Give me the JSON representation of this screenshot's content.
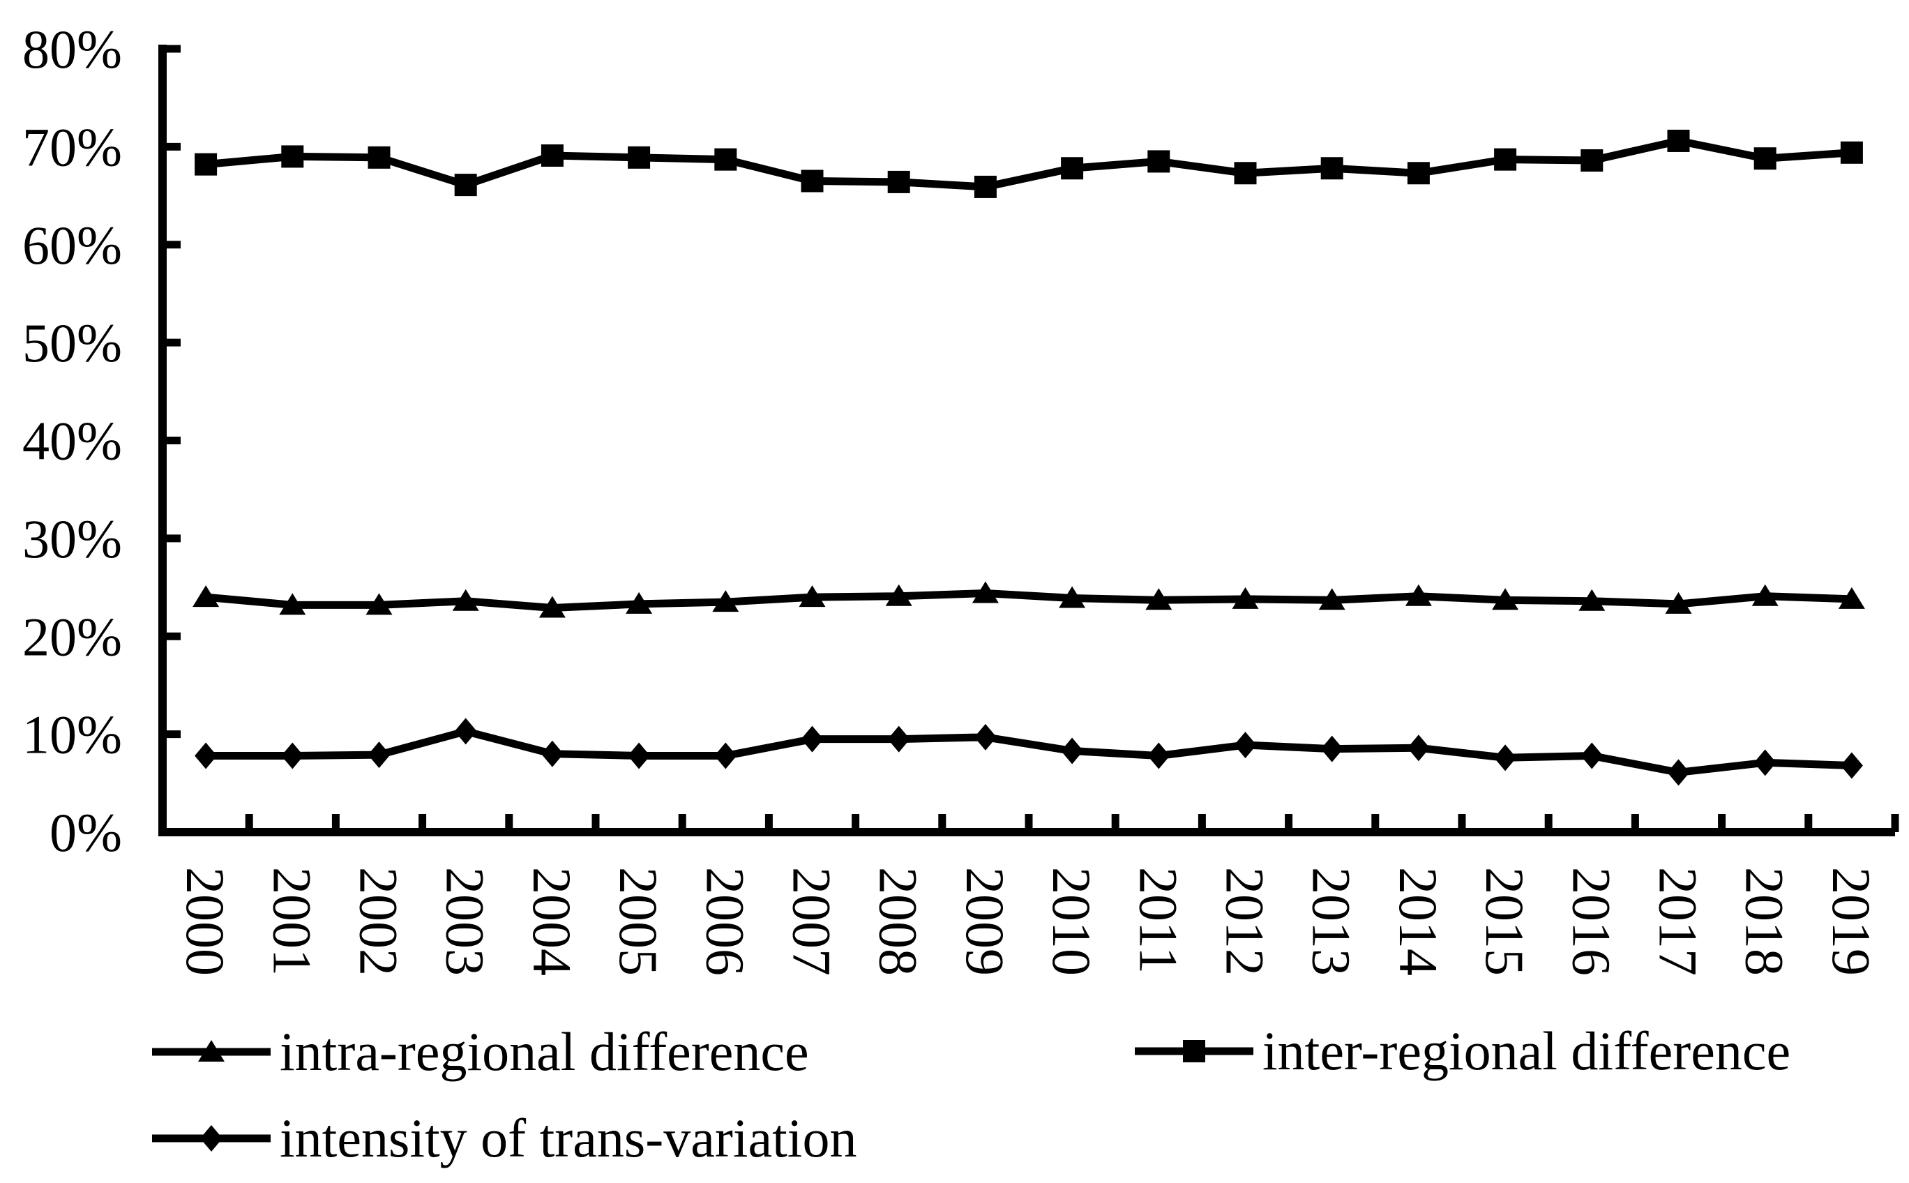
{
  "chart_data": {
    "type": "line",
    "title": "",
    "xlabel": "",
    "ylabel": "",
    "categories": [
      "2000",
      "2001",
      "2002",
      "2003",
      "2004",
      "2005",
      "2006",
      "2007",
      "2008",
      "2009",
      "2010",
      "2011",
      "2012",
      "2013",
      "2014",
      "2015",
      "2016",
      "2017",
      "2018",
      "2019"
    ],
    "series": [
      {
        "name": "intra-regional difference",
        "marker": "triangle",
        "values": [
          24.0,
          23.2,
          23.2,
          23.6,
          22.9,
          23.3,
          23.5,
          24.0,
          24.1,
          24.4,
          23.9,
          23.7,
          23.8,
          23.7,
          24.1,
          23.7,
          23.6,
          23.3,
          24.1,
          23.8
        ]
      },
      {
        "name": "inter-regional difference",
        "marker": "square",
        "values": [
          68.2,
          69.0,
          68.9,
          66.1,
          69.1,
          68.9,
          68.7,
          66.5,
          66.4,
          65.9,
          67.8,
          68.5,
          67.3,
          67.8,
          67.3,
          68.7,
          68.6,
          70.6,
          68.8,
          69.4
        ]
      },
      {
        "name": "intensity of trans-variation",
        "marker": "diamond",
        "values": [
          7.8,
          7.8,
          7.9,
          10.3,
          8.0,
          7.8,
          7.8,
          9.5,
          9.5,
          9.7,
          8.3,
          7.8,
          8.9,
          8.5,
          8.6,
          7.6,
          7.8,
          6.1,
          7.1,
          6.8
        ]
      }
    ],
    "y_ticks": [
      "0%",
      "10%",
      "20%",
      "30%",
      "40%",
      "50%",
      "60%",
      "70%",
      "80%"
    ],
    "ylim": [
      0,
      80
    ],
    "grid": false,
    "line_color": "#000000",
    "background_color": "#ffffff",
    "legend_position": "bottom"
  }
}
